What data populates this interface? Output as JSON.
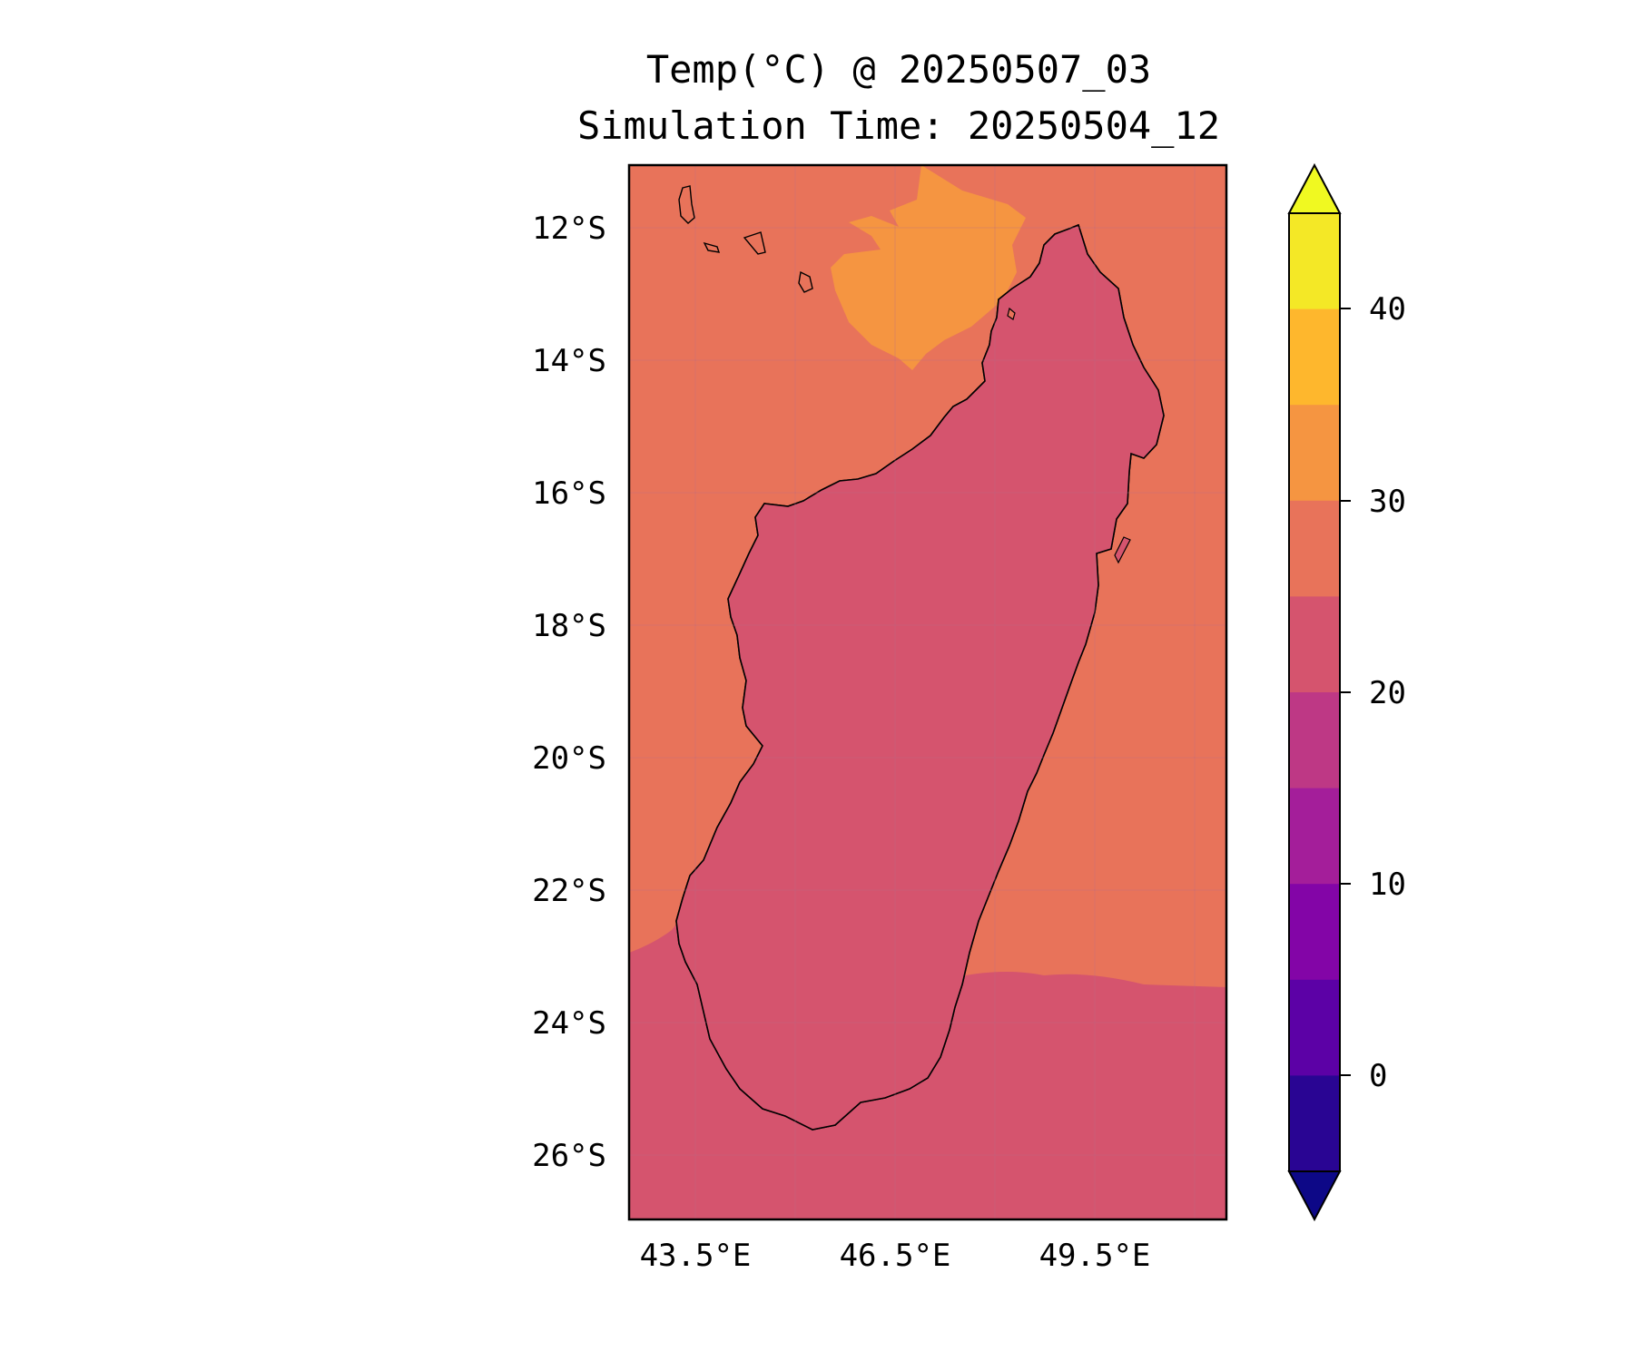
{
  "title": "Temp(°C) @ 20250507_03",
  "subtitle": "Simulation Time: 20250504_12",
  "map": {
    "lat_ticks": [
      "12°S",
      "14°S",
      "16°S",
      "18°S",
      "20°S",
      "22°S",
      "24°S",
      "26°S"
    ],
    "lon_ticks": [
      "43.5°E",
      "46.5°E",
      "49.5°E"
    ],
    "grid": true,
    "background_range_c": [
      25,
      30
    ]
  },
  "colorbar": {
    "ticks": [
      "40",
      "30",
      "20",
      "10",
      "0"
    ],
    "levels_c": [
      -5,
      0,
      5,
      10,
      15,
      20,
      25,
      30,
      35,
      40,
      45
    ],
    "colors_top_to_bottom": [
      "#f4e826",
      "#feb72d",
      "#f59541",
      "#e8735a",
      "#d5546e",
      "#be3885",
      "#a41e9a",
      "#8305a7",
      "#5c01a6",
      "#290593"
    ],
    "extend_low_color": "#0d0887",
    "extend_high_color": "#f0f921"
  }
}
